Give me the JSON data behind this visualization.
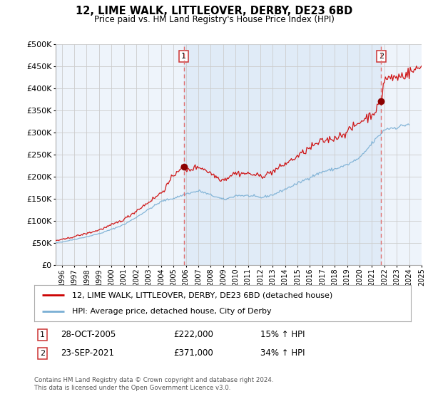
{
  "title": "12, LIME WALK, LITTLEOVER, DERBY, DE23 6BD",
  "subtitle": "Price paid vs. HM Land Registry's House Price Index (HPI)",
  "footer": "Contains HM Land Registry data © Crown copyright and database right 2024.\nThis data is licensed under the Open Government Licence v3.0.",
  "legend_line1": "12, LIME WALK, LITTLEOVER, DERBY, DE23 6BD (detached house)",
  "legend_line2": "HPI: Average price, detached house, City of Derby",
  "annotation1_label": "1",
  "annotation1_date": "28-OCT-2005",
  "annotation1_price": "£222,000",
  "annotation1_hpi": "15% ↑ HPI",
  "annotation2_label": "2",
  "annotation2_date": "23-SEP-2021",
  "annotation2_price": "£371,000",
  "annotation2_hpi": "34% ↑ HPI",
  "ylim": [
    0,
    500000
  ],
  "yticks": [
    0,
    50000,
    100000,
    150000,
    200000,
    250000,
    300000,
    350000,
    400000,
    450000,
    500000
  ],
  "price_color": "#cc0000",
  "hpi_color": "#7aafd4",
  "vline_color": "#e07070",
  "dot_color": "#8b0000",
  "background_color": "#ffffff",
  "plot_bg_color": "#eef4fb",
  "grid_color": "#cccccc",
  "sale1_x": 2005.83,
  "sale1_y": 222000,
  "sale2_x": 2021.75,
  "sale2_y": 371000,
  "xmin": 1995.5,
  "xmax": 2025.0
}
